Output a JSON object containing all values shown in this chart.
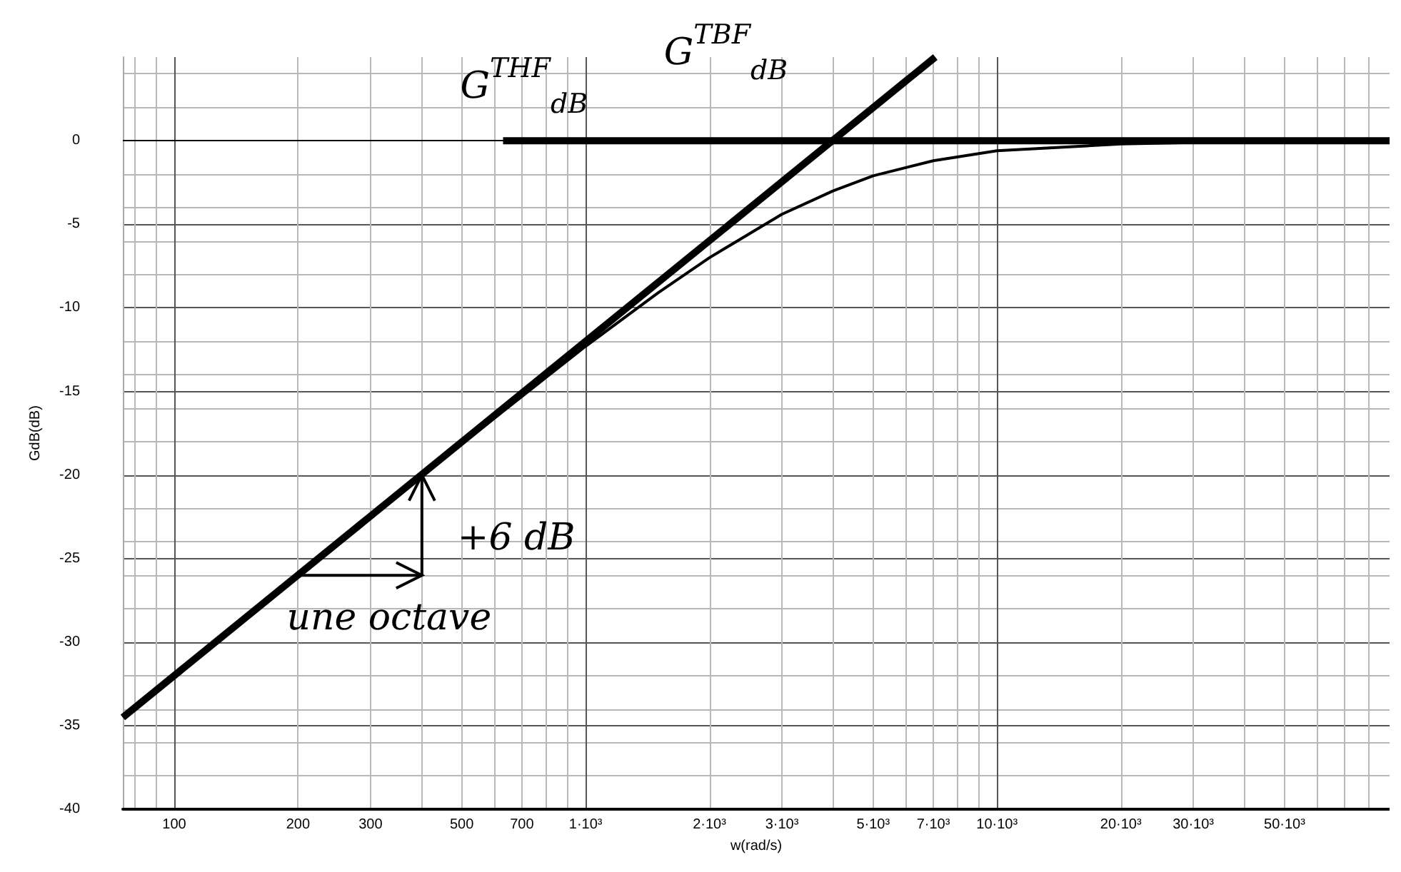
{
  "chart_data": {
    "type": "line",
    "xlabel": "w(rad/s)",
    "ylabel": "GdB(dB)",
    "log": "x",
    "xlim": [
      75,
      90000
    ],
    "ylim": [
      -40,
      5
    ],
    "xticks": [
      100,
      200,
      300,
      500,
      700,
      {
        "value": 1000,
        "label": "1·10³"
      },
      {
        "value": 2000,
        "label": "2·10³"
      },
      {
        "value": 3000,
        "label": "3·10³"
      },
      {
        "value": 5000,
        "label": "5·10³"
      },
      {
        "value": 7000,
        "label": "7·10³"
      },
      {
        "value": 10000,
        "label": "10·10³"
      },
      {
        "value": 20000,
        "label": "20·10³"
      },
      {
        "value": 30000,
        "label": "30·10³"
      },
      {
        "value": 50000,
        "label": "50·10³"
      }
    ],
    "yticks": [
      -40,
      -35,
      -30,
      -25,
      -20,
      -15,
      -10,
      -5,
      0
    ],
    "grid": true,
    "marker": "none",
    "line_style": "solid",
    "ref_lines": [
      {
        "axis": "y",
        "value": 0,
        "color": "#000000"
      }
    ],
    "series": [
      {
        "color": "#000000",
        "x": [
          75,
          7080
        ],
        "values": [
          -34.5,
          5
        ]
      },
      {
        "color": "#000000",
        "x": [
          630,
          90000
        ],
        "values": [
          0,
          0
        ]
      },
      {
        "color": "#000000",
        "x": [
          75,
          100,
          200,
          400,
          700,
          1000,
          1500,
          2000,
          3000,
          4000,
          5000,
          7000,
          10000,
          20000,
          50000,
          90000
        ],
        "values": [
          -34.5,
          -32,
          -26,
          -20,
          -15.3,
          -12.3,
          -9.1,
          -7,
          -4.4,
          -3,
          -2.1,
          -1.2,
          -0.6,
          -0.2,
          0,
          0
        ]
      }
    ],
    "annotations": [
      "G$^{THF}$$_{dB}$",
      "G$^{TBF}$$_{dB}$",
      {
        "text": "une octave",
        "x": 200,
        "y": -26
      },
      {
        "text": "+6 dB",
        "x": 400,
        "y": -20
      }
    ]
  }
}
